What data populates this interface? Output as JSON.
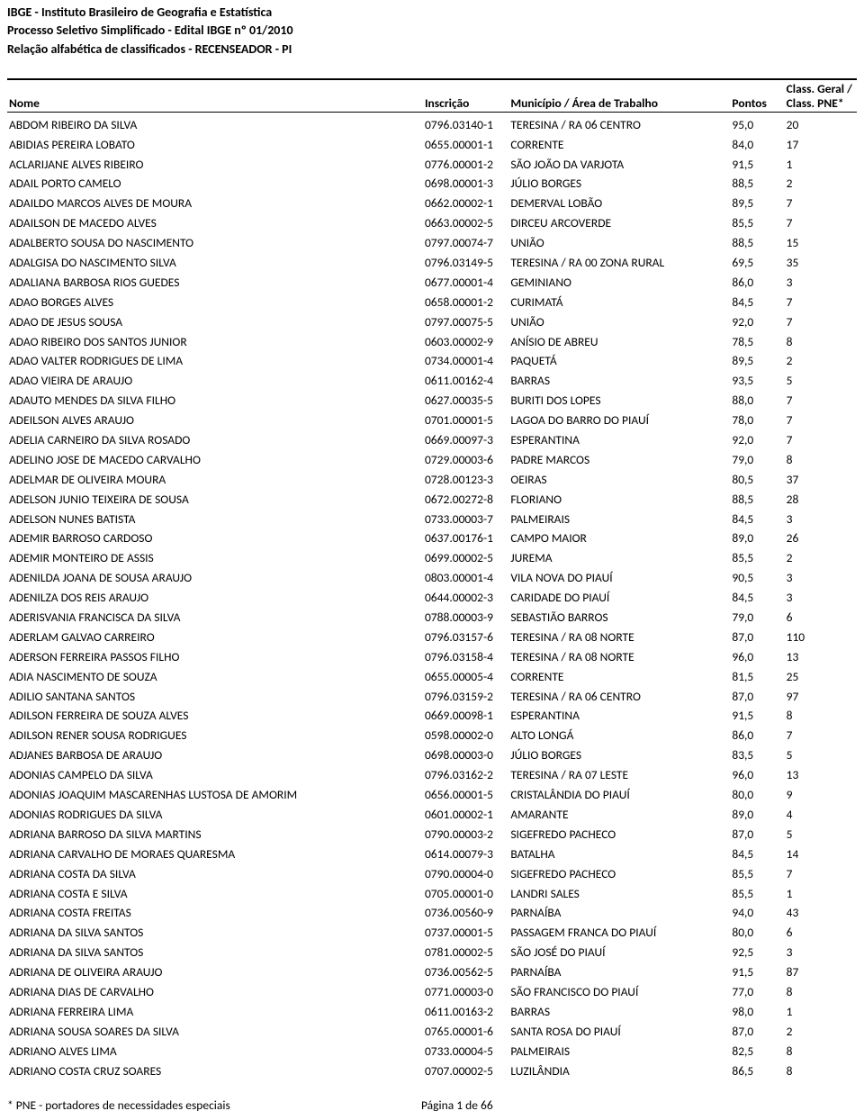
{
  "header": {
    "line1": "IBGE - Instituto Brasileiro de Geografia e Estatística",
    "line2": "Processo Seletivo Simplificado - Edital IBGE nº 01/2010",
    "line3": "Relação alfabética de classificados - RECENSEADOR - PI"
  },
  "columns": {
    "nome": "Nome",
    "inscricao": "Inscrição",
    "municipio": "Município / Área de Trabalho",
    "pontos": "Pontos",
    "class": "Class. Geral / Class. PNE*"
  },
  "rows": [
    {
      "nome": "ABDOM RIBEIRO DA SILVA",
      "insc": "0796.03140-1",
      "mun": "TERESINA / RA 06 CENTRO",
      "pts": "95,0",
      "cls": "20"
    },
    {
      "nome": "ABIDIAS PEREIRA LOBATO",
      "insc": "0655.00001-1",
      "mun": "CORRENTE",
      "pts": "84,0",
      "cls": "17"
    },
    {
      "nome": "ACLARIJANE ALVES RIBEIRO",
      "insc": "0776.00001-2",
      "mun": "SÃO JOÃO DA VARJOTA",
      "pts": "91,5",
      "cls": "1"
    },
    {
      "nome": "ADAIL PORTO CAMELO",
      "insc": "0698.00001-3",
      "mun": "JÚLIO BORGES",
      "pts": "88,5",
      "cls": "2"
    },
    {
      "nome": "ADAILDO MARCOS ALVES DE MOURA",
      "insc": "0662.00002-1",
      "mun": "DEMERVAL LOBÃO",
      "pts": "89,5",
      "cls": "7"
    },
    {
      "nome": "ADAILSON DE MACEDO ALVES",
      "insc": "0663.00002-5",
      "mun": "DIRCEU ARCOVERDE",
      "pts": "85,5",
      "cls": "7"
    },
    {
      "nome": "ADALBERTO SOUSA DO NASCIMENTO",
      "insc": "0797.00074-7",
      "mun": "UNIÃO",
      "pts": "88,5",
      "cls": "15"
    },
    {
      "nome": "ADALGISA DO NASCIMENTO SILVA",
      "insc": "0796.03149-5",
      "mun": "TERESINA / RA 00 ZONA RURAL",
      "pts": "69,5",
      "cls": "35"
    },
    {
      "nome": "ADALIANA BARBOSA RIOS GUEDES",
      "insc": "0677.00001-4",
      "mun": "GEMINIANO",
      "pts": "86,0",
      "cls": "3"
    },
    {
      "nome": "ADAO BORGES ALVES",
      "insc": "0658.00001-2",
      "mun": "CURIMATÁ",
      "pts": "84,5",
      "cls": "7"
    },
    {
      "nome": "ADAO DE JESUS SOUSA",
      "insc": "0797.00075-5",
      "mun": "UNIÃO",
      "pts": "92,0",
      "cls": "7"
    },
    {
      "nome": "ADAO RIBEIRO DOS SANTOS JUNIOR",
      "insc": "0603.00002-9",
      "mun": "ANÍSIO DE ABREU",
      "pts": "78,5",
      "cls": "8"
    },
    {
      "nome": "ADAO VALTER RODRIGUES DE LIMA",
      "insc": "0734.00001-4",
      "mun": "PAQUETÁ",
      "pts": "89,5",
      "cls": "2"
    },
    {
      "nome": "ADAO VIEIRA DE ARAUJO",
      "insc": "0611.00162-4",
      "mun": "BARRAS",
      "pts": "93,5",
      "cls": "5"
    },
    {
      "nome": "ADAUTO MENDES DA SILVA FILHO",
      "insc": "0627.00035-5",
      "mun": "BURITI DOS LOPES",
      "pts": "88,0",
      "cls": "7"
    },
    {
      "nome": "ADEILSON ALVES ARAUJO",
      "insc": "0701.00001-5",
      "mun": "LAGOA DO BARRO DO PIAUÍ",
      "pts": "78,0",
      "cls": "7"
    },
    {
      "nome": "ADELIA CARNEIRO DA SILVA ROSADO",
      "insc": "0669.00097-3",
      "mun": "ESPERANTINA",
      "pts": "92,0",
      "cls": "7"
    },
    {
      "nome": "ADELINO JOSE DE MACEDO CARVALHO",
      "insc": "0729.00003-6",
      "mun": "PADRE MARCOS",
      "pts": "79,0",
      "cls": "8"
    },
    {
      "nome": "ADELMAR DE OLIVEIRA MOURA",
      "insc": "0728.00123-3",
      "mun": "OEIRAS",
      "pts": "80,5",
      "cls": "37"
    },
    {
      "nome": "ADELSON JUNIO TEIXEIRA DE SOUSA",
      "insc": "0672.00272-8",
      "mun": "FLORIANO",
      "pts": "88,5",
      "cls": "28"
    },
    {
      "nome": "ADELSON NUNES BATISTA",
      "insc": "0733.00003-7",
      "mun": "PALMEIRAIS",
      "pts": "84,5",
      "cls": "3"
    },
    {
      "nome": "ADEMIR BARROSO CARDOSO",
      "insc": "0637.00176-1",
      "mun": "CAMPO MAIOR",
      "pts": "89,0",
      "cls": "26"
    },
    {
      "nome": "ADEMIR MONTEIRO DE ASSIS",
      "insc": "0699.00002-5",
      "mun": "JUREMA",
      "pts": "85,5",
      "cls": "2"
    },
    {
      "nome": "ADENILDA JOANA DE SOUSA ARAUJO",
      "insc": "0803.00001-4",
      "mun": "VILA NOVA DO PIAUÍ",
      "pts": "90,5",
      "cls": "3"
    },
    {
      "nome": "ADENILZA DOS REIS ARAUJO",
      "insc": "0644.00002-3",
      "mun": "CARIDADE DO PIAUÍ",
      "pts": "84,5",
      "cls": "3"
    },
    {
      "nome": "ADERISVANIA FRANCISCA DA SILVA",
      "insc": "0788.00003-9",
      "mun": "SEBASTIÃO BARROS",
      "pts": "79,0",
      "cls": "6"
    },
    {
      "nome": "ADERLAM GALVAO CARREIRO",
      "insc": "0796.03157-6",
      "mun": "TERESINA / RA 08 NORTE",
      "pts": "87,0",
      "cls": "110"
    },
    {
      "nome": "ADERSON FERREIRA PASSOS FILHO",
      "insc": "0796.03158-4",
      "mun": "TERESINA / RA 08 NORTE",
      "pts": "96,0",
      "cls": "13"
    },
    {
      "nome": "ADIA NASCIMENTO DE SOUZA",
      "insc": "0655.00005-4",
      "mun": "CORRENTE",
      "pts": "81,5",
      "cls": "25"
    },
    {
      "nome": "ADILIO SANTANA SANTOS",
      "insc": "0796.03159-2",
      "mun": "TERESINA / RA 06 CENTRO",
      "pts": "87,0",
      "cls": "97"
    },
    {
      "nome": "ADILSON FERREIRA DE SOUZA ALVES",
      "insc": "0669.00098-1",
      "mun": "ESPERANTINA",
      "pts": "91,5",
      "cls": "8"
    },
    {
      "nome": "ADILSON RENER SOUSA RODRIGUES",
      "insc": "0598.00002-0",
      "mun": "ALTO LONGÁ",
      "pts": "86,0",
      "cls": "7"
    },
    {
      "nome": "ADJANES BARBOSA DE ARAUJO",
      "insc": "0698.00003-0",
      "mun": "JÚLIO BORGES",
      "pts": "83,5",
      "cls": "5"
    },
    {
      "nome": "ADONIAS CAMPELO DA SILVA",
      "insc": "0796.03162-2",
      "mun": "TERESINA / RA 07 LESTE",
      "pts": "96,0",
      "cls": "13"
    },
    {
      "nome": "ADONIAS JOAQUIM MASCARENHAS LUSTOSA DE AMORIM",
      "insc": "0656.00001-5",
      "mun": "CRISTALÂNDIA DO PIAUÍ",
      "pts": "80,0",
      "cls": "9"
    },
    {
      "nome": "ADONIAS RODRIGUES DA SILVA",
      "insc": "0601.00002-1",
      "mun": "AMARANTE",
      "pts": "89,0",
      "cls": "4"
    },
    {
      "nome": "ADRIANA BARROSO DA SILVA MARTINS",
      "insc": "0790.00003-2",
      "mun": "SIGEFREDO PACHECO",
      "pts": "87,0",
      "cls": "5"
    },
    {
      "nome": "ADRIANA CARVALHO DE MORAES QUARESMA",
      "insc": "0614.00079-3",
      "mun": "BATALHA",
      "pts": "84,5",
      "cls": "14"
    },
    {
      "nome": "ADRIANA COSTA DA SILVA",
      "insc": "0790.00004-0",
      "mun": "SIGEFREDO PACHECO",
      "pts": "85,5",
      "cls": "7"
    },
    {
      "nome": "ADRIANA COSTA E SILVA",
      "insc": "0705.00001-0",
      "mun": "LANDRI SALES",
      "pts": "85,5",
      "cls": "1"
    },
    {
      "nome": "ADRIANA COSTA FREITAS",
      "insc": "0736.00560-9",
      "mun": "PARNAÍBA",
      "pts": "94,0",
      "cls": "43"
    },
    {
      "nome": "ADRIANA DA SILVA SANTOS",
      "insc": "0737.00001-5",
      "mun": "PASSAGEM FRANCA DO PIAUÍ",
      "pts": "80,0",
      "cls": "6"
    },
    {
      "nome": "ADRIANA DA SILVA SANTOS",
      "insc": "0781.00002-5",
      "mun": "SÃO JOSÉ DO PIAUÍ",
      "pts": "92,5",
      "cls": "3"
    },
    {
      "nome": "ADRIANA DE OLIVEIRA ARAUJO",
      "insc": "0736.00562-5",
      "mun": "PARNAÍBA",
      "pts": "91,5",
      "cls": "87"
    },
    {
      "nome": "ADRIANA DIAS DE CARVALHO",
      "insc": "0771.00003-0",
      "mun": "SÃO FRANCISCO DO PIAUÍ",
      "pts": "77,0",
      "cls": "8"
    },
    {
      "nome": "ADRIANA FERREIRA LIMA",
      "insc": "0611.00163-2",
      "mun": "BARRAS",
      "pts": "98,0",
      "cls": "1"
    },
    {
      "nome": "ADRIANA SOUSA SOARES DA SILVA",
      "insc": "0765.00001-6",
      "mun": "SANTA ROSA DO PIAUÍ",
      "pts": "87,0",
      "cls": "2"
    },
    {
      "nome": "ADRIANO ALVES LIMA",
      "insc": "0733.00004-5",
      "mun": "PALMEIRAIS",
      "pts": "82,5",
      "cls": "8"
    },
    {
      "nome": "ADRIANO COSTA CRUZ SOARES",
      "insc": "0707.00002-5",
      "mun": "LUZILÂNDIA",
      "pts": "86,5",
      "cls": "8"
    }
  ],
  "footer": {
    "note": "* PNE - portadores de necessidades especiais",
    "page": "Página 1 de 66"
  }
}
